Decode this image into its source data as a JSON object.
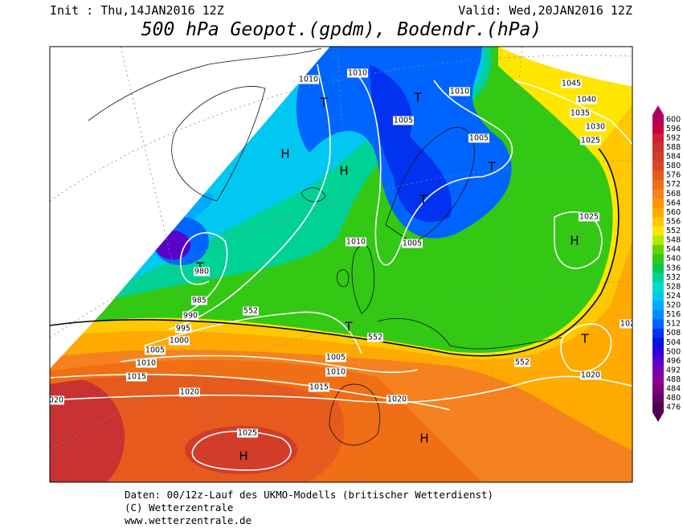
{
  "header": {
    "init": "Init : Thu,14JAN2016 12Z",
    "valid": "Valid: Wed,20JAN2016 12Z",
    "title": "500 hPa Geopot.(gpdm), Bodendr.(hPa)"
  },
  "map": {
    "labels": [
      "1010",
      "T",
      "1010",
      "T",
      "1010",
      "1005",
      "1005",
      "T",
      "H",
      "H",
      "T",
      "1025",
      "H",
      "1010",
      "1005",
      "T",
      "980",
      "985",
      "990",
      "552",
      "995",
      "1000",
      "T",
      "552",
      "1005",
      "1010",
      "1005",
      "552",
      "T",
      "1015",
      "1010",
      "1020",
      "1015",
      "1020",
      "1020",
      "020",
      "1025",
      "H",
      "H",
      "1045",
      "1040",
      "1035",
      "1030",
      "1025",
      "102"
    ]
  },
  "legend": {
    "levels": [
      {
        "label": "600",
        "color": "#b4005a"
      },
      {
        "label": "596",
        "color": "#c8003c"
      },
      {
        "label": "592",
        "color": "#d21e32"
      },
      {
        "label": "588",
        "color": "#c83232"
      },
      {
        "label": "584",
        "color": "#d23c28"
      },
      {
        "label": "580",
        "color": "#dc4628"
      },
      {
        "label": "576",
        "color": "#e65a1e"
      },
      {
        "label": "572",
        "color": "#f06e14"
      },
      {
        "label": "568",
        "color": "#f5821e"
      },
      {
        "label": "564",
        "color": "#fa9600"
      },
      {
        "label": "560",
        "color": "#ffaa00"
      },
      {
        "label": "556",
        "color": "#ffc800"
      },
      {
        "label": "552",
        "color": "#ffe600"
      },
      {
        "label": "548",
        "color": "#b4e600"
      },
      {
        "label": "544",
        "color": "#64d200"
      },
      {
        "label": "540",
        "color": "#32c814"
      },
      {
        "label": "536",
        "color": "#00c850"
      },
      {
        "label": "532",
        "color": "#00d296"
      },
      {
        "label": "528",
        "color": "#00dcc8"
      },
      {
        "label": "524",
        "color": "#00c8f0"
      },
      {
        "label": "520",
        "color": "#00aaff"
      },
      {
        "label": "516",
        "color": "#008cff"
      },
      {
        "label": "512",
        "color": "#0064ff"
      },
      {
        "label": "508",
        "color": "#0032f0"
      },
      {
        "label": "504",
        "color": "#0014dc"
      },
      {
        "label": "500",
        "color": "#3200dc"
      },
      {
        "label": "496",
        "color": "#5a00c8"
      },
      {
        "label": "492",
        "color": "#7800b4"
      },
      {
        "label": "488",
        "color": "#8c0096"
      },
      {
        "label": "484",
        "color": "#7a007a"
      },
      {
        "label": "480",
        "color": "#640064"
      },
      {
        "label": "476",
        "color": "#500050"
      }
    ]
  },
  "footer": {
    "lines": [
      "Daten: 00/12z-Lauf des UKMO-Modells (britischer Wetterdienst)",
      "(C) Wetterzentrale",
      "www.wetterzentrale.de"
    ]
  }
}
